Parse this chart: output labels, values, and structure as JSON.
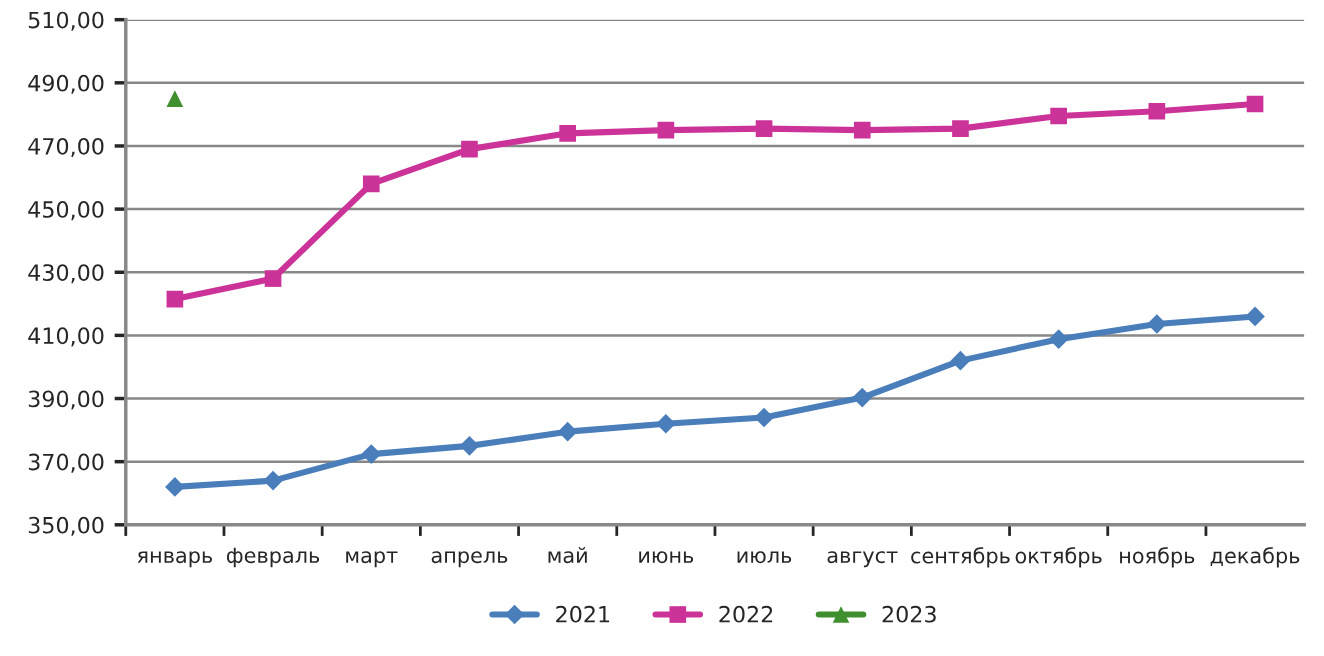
{
  "chart_data": {
    "type": "line",
    "categories": [
      "январь",
      "февраль",
      "март",
      "апрель",
      "май",
      "июнь",
      "июль",
      "август",
      "сентябрь",
      "октябрь",
      "ноябрь",
      "декабрь"
    ],
    "series": [
      {
        "name": "2021",
        "color": "#4a7ebb",
        "marker": "diamond",
        "values": [
          362,
          364,
          372.4,
          375,
          379.5,
          382,
          384,
          390.3,
          402,
          408.8,
          413.6,
          416
        ]
      },
      {
        "name": "2022",
        "color": "#cc3399",
        "marker": "square",
        "values": [
          421.5,
          428,
          458,
          469,
          474,
          475,
          475.5,
          475,
          475.5,
          479.5,
          481,
          483.3
        ]
      },
      {
        "name": "2023",
        "color": "#3f8f2f",
        "marker": "triangle",
        "values": [
          485,
          null,
          null,
          null,
          null,
          null,
          null,
          null,
          null,
          null,
          null,
          null
        ]
      }
    ],
    "ylim": [
      350,
      510
    ],
    "yticks": [
      {
        "value": 350,
        "label": "350,00"
      },
      {
        "value": 370,
        "label": "370,00"
      },
      {
        "value": 390,
        "label": "390,00"
      },
      {
        "value": 410,
        "label": "410,00"
      },
      {
        "value": 430,
        "label": "430,00"
      },
      {
        "value": 450,
        "label": "450,00"
      },
      {
        "value": 470,
        "label": "470,00"
      },
      {
        "value": 490,
        "label": "490,00"
      },
      {
        "value": 510,
        "label": "510,00"
      }
    ],
    "grid": "y",
    "legend": "bottom",
    "line_style": "solid"
  }
}
